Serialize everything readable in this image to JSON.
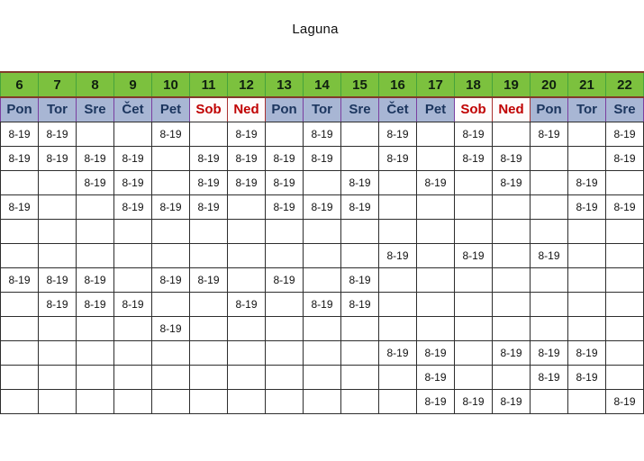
{
  "title": "Laguna",
  "schedule": {
    "shift_label": "8-19",
    "columns": [
      {
        "day": "6",
        "name": "Pon",
        "weekend": false
      },
      {
        "day": "7",
        "name": "Tor",
        "weekend": false
      },
      {
        "day": "8",
        "name": "Sre",
        "weekend": false
      },
      {
        "day": "9",
        "name": "Čet",
        "weekend": false
      },
      {
        "day": "10",
        "name": "Pet",
        "weekend": false
      },
      {
        "day": "11",
        "name": "Sob",
        "weekend": true
      },
      {
        "day": "12",
        "name": "Ned",
        "weekend": true
      },
      {
        "day": "13",
        "name": "Pon",
        "weekend": false
      },
      {
        "day": "14",
        "name": "Tor",
        "weekend": false
      },
      {
        "day": "15",
        "name": "Sre",
        "weekend": false
      },
      {
        "day": "16",
        "name": "Čet",
        "weekend": false
      },
      {
        "day": "17",
        "name": "Pet",
        "weekend": false
      },
      {
        "day": "18",
        "name": "Sob",
        "weekend": true
      },
      {
        "day": "19",
        "name": "Ned",
        "weekend": true
      },
      {
        "day": "20",
        "name": "Pon",
        "weekend": false
      },
      {
        "day": "21",
        "name": "Tor",
        "weekend": false
      },
      {
        "day": "22",
        "name": "Sre",
        "weekend": false
      }
    ],
    "rows": [
      [
        "8-19",
        "8-19",
        "",
        "",
        "8-19",
        "",
        "8-19",
        "",
        "8-19",
        "",
        "8-19",
        "",
        "8-19",
        "",
        "8-19",
        "",
        "8-19"
      ],
      [
        "8-19",
        "8-19",
        "8-19",
        "8-19",
        "",
        "8-19",
        "8-19",
        "8-19",
        "8-19",
        "",
        "8-19",
        "",
        "8-19",
        "8-19",
        "",
        "",
        "8-19"
      ],
      [
        "",
        "",
        "8-19",
        "8-19",
        "",
        "8-19",
        "8-19",
        "8-19",
        "",
        "8-19",
        "",
        "8-19",
        "",
        "8-19",
        "",
        "8-19",
        ""
      ],
      [
        "8-19",
        "",
        "",
        "8-19",
        "8-19",
        "8-19",
        "",
        "8-19",
        "8-19",
        "8-19",
        "",
        "",
        "",
        "",
        "",
        "8-19",
        "8-19"
      ],
      [
        "",
        "",
        "",
        "",
        "",
        "",
        "",
        "",
        "",
        "",
        "",
        "",
        "",
        "",
        "",
        "",
        ""
      ],
      [
        "",
        "",
        "",
        "",
        "",
        "",
        "",
        "",
        "",
        "",
        "8-19",
        "",
        "8-19",
        "",
        "8-19",
        "",
        ""
      ],
      [
        "8-19",
        "8-19",
        "8-19",
        "",
        "8-19",
        "8-19",
        "",
        "8-19",
        "",
        "8-19",
        "",
        "",
        "",
        "",
        "",
        "",
        ""
      ],
      [
        "",
        "8-19",
        "8-19",
        "8-19",
        "",
        "",
        "8-19",
        "",
        "8-19",
        "8-19",
        "",
        "",
        "",
        "",
        "",
        "",
        ""
      ],
      [
        "",
        "",
        "",
        "",
        "8-19",
        "",
        "",
        "",
        "",
        "",
        "",
        "",
        "",
        "",
        "",
        "",
        ""
      ],
      [
        "",
        "",
        "",
        "",
        "",
        "",
        "",
        "",
        "",
        "",
        "8-19",
        "8-19",
        "",
        "8-19",
        "8-19",
        "8-19",
        ""
      ],
      [
        "",
        "",
        "",
        "",
        "",
        "",
        "",
        "",
        "",
        "",
        "",
        "8-19",
        "",
        "",
        "8-19",
        "8-19",
        ""
      ],
      [
        "",
        "",
        "",
        "",
        "",
        "",
        "",
        "",
        "",
        "",
        "",
        "8-19",
        "8-19",
        "8-19",
        "",
        "",
        "8-19"
      ]
    ]
  },
  "colors": {
    "header_green_bg": "#7cc13e",
    "header_green_border": "#46a33c",
    "header_divider": "#823b2a",
    "weekday_bg": "#a8b6d4",
    "weekday_text": "#1b355e",
    "weekday_border": "#7a3fa0",
    "weekend_text": "#c00000",
    "weekend_border": "#a83232",
    "grid": "#2e2e2e"
  }
}
